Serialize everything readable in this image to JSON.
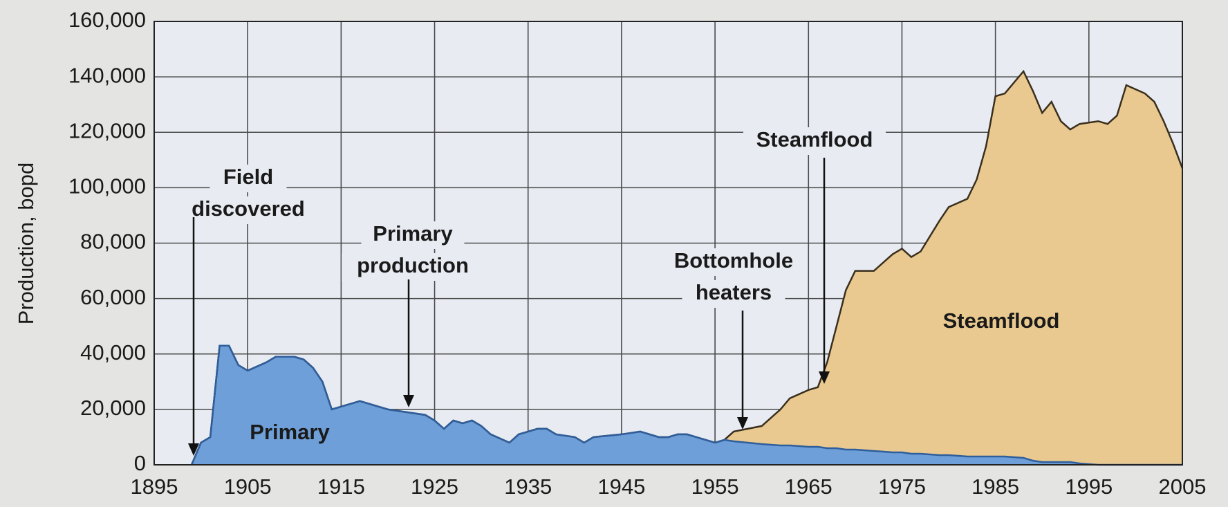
{
  "chart_data": {
    "type": "stacked_area",
    "y_label": "Production, bopd",
    "xlim": [
      1895,
      2005
    ],
    "xticks": [
      1895,
      1905,
      1915,
      1925,
      1935,
      1945,
      1955,
      1965,
      1975,
      1985,
      1995,
      2005
    ],
    "ylim": [
      0,
      160000
    ],
    "yticks": [
      0,
      {
        "value": 20000,
        "label": "20,000"
      },
      {
        "value": 40000,
        "label": "40,000"
      },
      {
        "value": 60000,
        "label": "60,000"
      },
      {
        "value": 80000,
        "label": "80,000"
      },
      {
        "value": 100000,
        "label": "100,000"
      },
      {
        "value": 120000,
        "label": "120,000"
      },
      {
        "value": 140000,
        "label": "140,000"
      },
      {
        "value": 160000,
        "label": "160,000"
      }
    ],
    "grid": true,
    "x": [
      1899,
      1900,
      1901,
      1902,
      1903,
      1904,
      1905,
      1907,
      1908,
      1910,
      1911,
      1912,
      1913,
      1914,
      1916,
      1917,
      1920,
      1922,
      1924,
      1925,
      1926,
      1927,
      1928,
      1929,
      1930,
      1931,
      1933,
      1934,
      1936,
      1937,
      1938,
      1940,
      1941,
      1942,
      1945,
      1947,
      1949,
      1950,
      1951,
      1952,
      1954,
      1955,
      1956,
      1957,
      1960,
      1962,
      1963,
      1965,
      1966,
      1967,
      1968,
      1969,
      1970,
      1972,
      1974,
      1975,
      1976,
      1977,
      1979,
      1980,
      1982,
      1983,
      1984,
      1985,
      1986,
      1988,
      1989,
      1990,
      1991,
      1992,
      1993,
      1994,
      1996,
      1997,
      1998,
      1999,
      2001,
      2002,
      2003,
      2004,
      2005
    ],
    "series": [
      {
        "name": "Primary",
        "color": "#6f9fd8",
        "values": [
          0,
          8000,
          10000,
          43000,
          43000,
          36000,
          34000,
          37000,
          39000,
          39000,
          38000,
          35000,
          30000,
          20000,
          22000,
          23000,
          20000,
          19000,
          18000,
          16000,
          13000,
          16000,
          15000,
          16000,
          14000,
          11000,
          8000,
          11000,
          13000,
          13000,
          11000,
          10000,
          8000,
          10000,
          11000,
          12000,
          10000,
          10000,
          11000,
          11000,
          9000,
          8000,
          9000,
          8500,
          7500,
          7000,
          7000,
          6500,
          6500,
          6000,
          6000,
          5500,
          5500,
          5000,
          4500,
          4500,
          4000,
          4000,
          3500,
          3500,
          3000,
          3000,
          3000,
          3000,
          3000,
          2500,
          1500,
          1000,
          1000,
          1000,
          1000,
          500,
          0,
          0,
          0,
          0,
          0,
          0,
          0,
          0,
          0
        ]
      },
      {
        "name": "Steamflood",
        "color": "#e9c98f",
        "values": [
          0,
          0,
          0,
          0,
          0,
          0,
          0,
          0,
          0,
          0,
          0,
          0,
          0,
          0,
          0,
          0,
          0,
          0,
          0,
          0,
          0,
          0,
          0,
          0,
          0,
          0,
          0,
          0,
          0,
          0,
          0,
          0,
          0,
          0,
          0,
          0,
          0,
          0,
          0,
          0,
          0,
          0,
          0,
          3500,
          6500,
          13000,
          17000,
          20500,
          21500,
          31000,
          44000,
          57500,
          64500,
          65000,
          71500,
          73500,
          71000,
          73000,
          84500,
          89500,
          93000,
          100000,
          112000,
          130000,
          131000,
          139500,
          133500,
          126000,
          130000,
          123000,
          120000,
          122500,
          124000,
          123000,
          126000,
          137000,
          134000,
          131000,
          124000,
          116000,
          107000
        ]
      }
    ],
    "annotations": [
      {
        "lines": [
          "Field",
          "discovered"
        ]
      },
      {
        "lines": [
          "Primary",
          "production"
        ]
      },
      {
        "lines": [
          "Bottomhole",
          "heaters"
        ]
      },
      {
        "lines": [
          "Steamflood"
        ]
      }
    ]
  }
}
